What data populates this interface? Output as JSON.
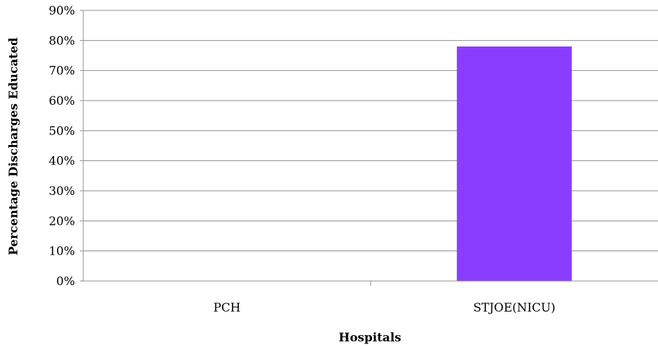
{
  "chart_data": {
    "type": "bar",
    "categories": [
      "PCH",
      "STJOE(NICU)"
    ],
    "series": [
      {
        "values": [
          0,
          0.78
        ],
        "color": "#8b3dff"
      }
    ],
    "xlabel": "Hospitals",
    "ylabel": "Percentage Discharges Educated",
    "ylim": [
      0,
      0.9
    ],
    "yticks": [
      0,
      0.1,
      0.2,
      0.3,
      0.4,
      0.5,
      0.6,
      0.7,
      0.8,
      0.9
    ],
    "ytick_labels": [
      "0%",
      "10%",
      "20%",
      "30%",
      "40%",
      "50%",
      "60%",
      "70%",
      "80%",
      "90%"
    ],
    "grid": "horizontal",
    "legend": "none"
  }
}
